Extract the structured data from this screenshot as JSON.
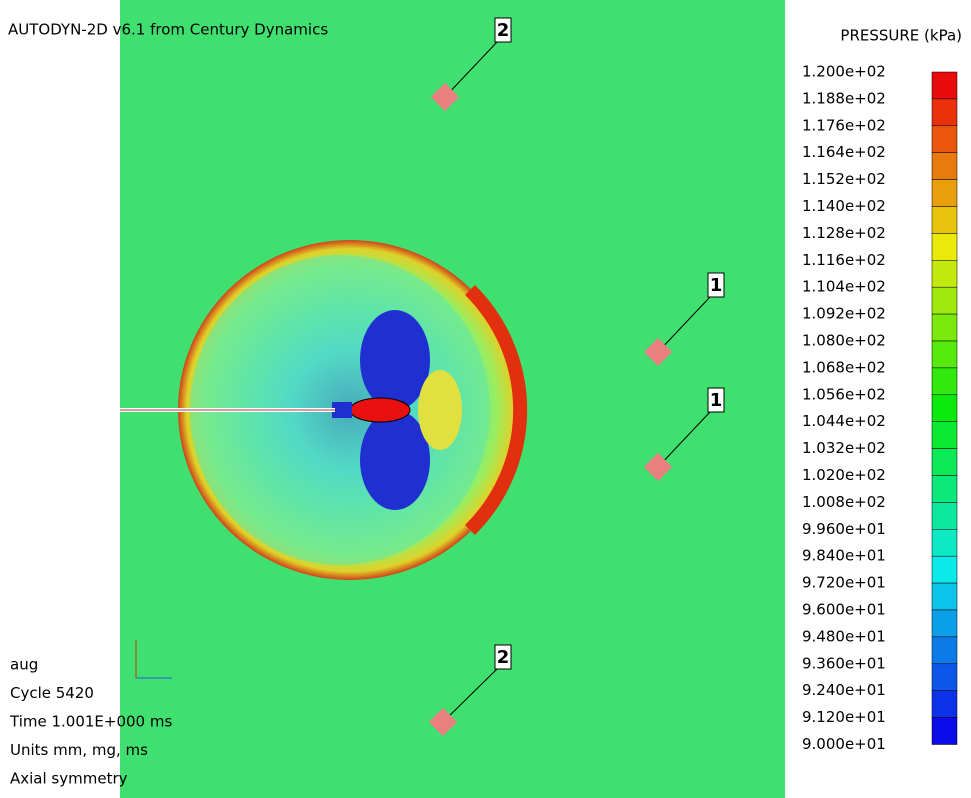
{
  "header": {
    "title": "AUTODYN-2D v6.1 from Century Dynamics"
  },
  "legend": {
    "title": "PRESSURE (kPa)",
    "labels": [
      "1.200e+02",
      "1.188e+02",
      "1.176e+02",
      "1.164e+02",
      "1.152e+02",
      "1.140e+02",
      "1.128e+02",
      "1.116e+02",
      "1.104e+02",
      "1.092e+02",
      "1.080e+02",
      "1.068e+02",
      "1.056e+02",
      "1.044e+02",
      "1.032e+02",
      "1.020e+02",
      "1.008e+02",
      "9.960e+01",
      "9.840e+01",
      "9.720e+01",
      "9.600e+01",
      "9.480e+01",
      "9.360e+01",
      "9.240e+01",
      "9.120e+01",
      "9.000e+01"
    ]
  },
  "gauges": [
    {
      "label": "2"
    },
    {
      "label": "1"
    },
    {
      "label": "1"
    },
    {
      "label": "2"
    }
  ],
  "info": [
    "aug",
    "Cycle 5420",
    "Time 1.001E+000 ms",
    "Units mm, mg, ms",
    "Axial symmetry"
  ]
}
